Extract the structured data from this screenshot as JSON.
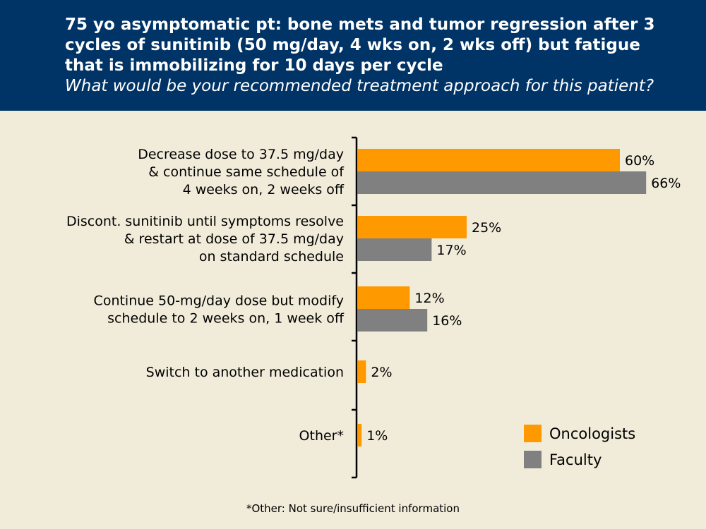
{
  "header": {
    "title_lines": [
      "75 yo asymptomatic pt: bone mets and tumor regression after 3",
      "cycles of sunitinib (50 mg/day, 4 wks on, 2 wks off) but fatigue",
      "that is immobilizing for 10 days per cycle"
    ],
    "subtitle": "What would be your recommended treatment approach for this patient?"
  },
  "footnote": "*Other: Not sure/insufficient information",
  "colors": {
    "header_bg": "#003366",
    "background": "#F1ECDA",
    "oncologists": "#FF9900",
    "faculty": "#808080"
  },
  "chart_data": {
    "type": "bar",
    "orientation": "horizontal",
    "categories": [
      [
        "Decrease dose to 37.5 mg/day",
        "& continue same schedule of",
        "4 weeks on, 2 weeks off"
      ],
      [
        "Discont. sunitinib until symptoms resolve",
        "& restart at dose of 37.5 mg/day",
        "on standard schedule"
      ],
      [
        "Continue 50-mg/day dose but modify",
        "schedule to 2 weeks on, 1 week off"
      ],
      [
        "Switch to another medication"
      ],
      [
        "Other*"
      ]
    ],
    "series": [
      {
        "name": "Oncologists",
        "values": [
          60,
          25,
          12,
          2,
          1
        ],
        "labels": [
          "60%",
          "25%",
          "12%",
          "2%",
          "1%"
        ],
        "color": "#FF9900"
      },
      {
        "name": "Faculty",
        "values": [
          66,
          17,
          16,
          null,
          null
        ],
        "labels": [
          "66%",
          "17%",
          "16%",
          null,
          null
        ],
        "color": "#808080"
      }
    ],
    "xlim": [
      0,
      100
    ],
    "grid": false,
    "legend_position": "bottom-right"
  }
}
